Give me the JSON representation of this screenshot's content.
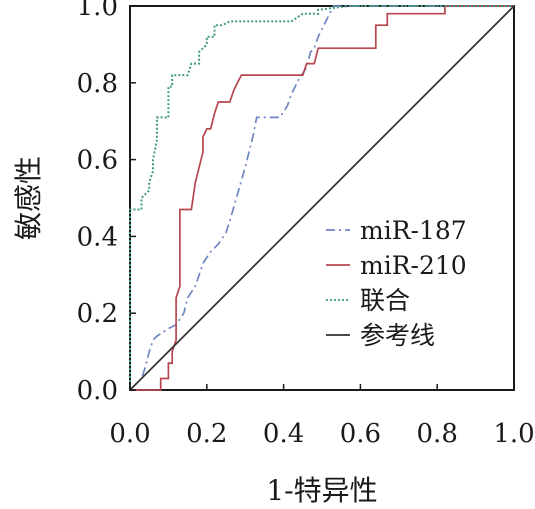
{
  "chart_data": {
    "type": "line",
    "title": "",
    "xlabel": "1-特异性",
    "ylabel": "敏感性",
    "xlim": [
      0.0,
      1.0
    ],
    "ylim": [
      0.0,
      1.0
    ],
    "xticks": [
      "0.0",
      "0.2",
      "0.4",
      "0.6",
      "0.8",
      "1.0"
    ],
    "yticks": [
      "0.0",
      "0.2",
      "0.4",
      "0.6",
      "0.8",
      "1.0"
    ],
    "grid": false,
    "legend_position": "right",
    "series": [
      {
        "name": "miR-187",
        "color": "#6f86c4",
        "style": "dashdot",
        "points": [
          [
            0.0,
            0.0
          ],
          [
            0.03,
            0.03
          ],
          [
            0.04,
            0.06
          ],
          [
            0.05,
            0.1
          ],
          [
            0.06,
            0.13
          ],
          [
            0.07,
            0.14
          ],
          [
            0.1,
            0.16
          ],
          [
            0.12,
            0.17
          ],
          [
            0.14,
            0.2
          ],
          [
            0.15,
            0.24
          ],
          [
            0.17,
            0.27
          ],
          [
            0.19,
            0.33
          ],
          [
            0.21,
            0.36
          ],
          [
            0.23,
            0.38
          ],
          [
            0.25,
            0.41
          ],
          [
            0.26,
            0.44
          ],
          [
            0.28,
            0.51
          ],
          [
            0.3,
            0.58
          ],
          [
            0.32,
            0.66
          ],
          [
            0.33,
            0.71
          ],
          [
            0.39,
            0.71
          ],
          [
            0.41,
            0.74
          ],
          [
            0.42,
            0.77
          ],
          [
            0.44,
            0.81
          ],
          [
            0.46,
            0.84
          ],
          [
            0.47,
            0.88
          ],
          [
            0.48,
            0.89
          ],
          [
            0.49,
            0.92
          ],
          [
            0.51,
            0.96
          ],
          [
            0.53,
            1.0
          ],
          [
            1.0,
            1.0
          ]
        ]
      },
      {
        "name": "miR-210",
        "color": "#b7474f",
        "style": "solid",
        "points": [
          [
            0.0,
            0.0
          ],
          [
            0.08,
            0.0
          ],
          [
            0.08,
            0.03
          ],
          [
            0.1,
            0.03
          ],
          [
            0.1,
            0.07
          ],
          [
            0.11,
            0.07
          ],
          [
            0.11,
            0.1
          ],
          [
            0.12,
            0.13
          ],
          [
            0.12,
            0.24
          ],
          [
            0.13,
            0.27
          ],
          [
            0.13,
            0.47
          ],
          [
            0.16,
            0.47
          ],
          [
            0.17,
            0.54
          ],
          [
            0.18,
            0.58
          ],
          [
            0.19,
            0.62
          ],
          [
            0.19,
            0.66
          ],
          [
            0.2,
            0.68
          ],
          [
            0.21,
            0.68
          ],
          [
            0.22,
            0.72
          ],
          [
            0.23,
            0.75
          ],
          [
            0.26,
            0.75
          ],
          [
            0.27,
            0.78
          ],
          [
            0.28,
            0.8
          ],
          [
            0.29,
            0.82
          ],
          [
            0.45,
            0.82
          ],
          [
            0.46,
            0.85
          ],
          [
            0.48,
            0.85
          ],
          [
            0.49,
            0.89
          ],
          [
            0.64,
            0.89
          ],
          [
            0.64,
            0.95
          ],
          [
            0.67,
            0.95
          ],
          [
            0.67,
            0.98
          ],
          [
            0.82,
            0.98
          ],
          [
            0.82,
            1.0
          ],
          [
            1.0,
            1.0
          ]
        ]
      },
      {
        "name": "联合",
        "color": "#3f9a7e",
        "style": "dotted",
        "points": [
          [
            0.0,
            0.0
          ],
          [
            0.0,
            0.47
          ],
          [
            0.03,
            0.47
          ],
          [
            0.03,
            0.5
          ],
          [
            0.05,
            0.52
          ],
          [
            0.05,
            0.54
          ],
          [
            0.06,
            0.57
          ],
          [
            0.06,
            0.6
          ],
          [
            0.07,
            0.65
          ],
          [
            0.07,
            0.71
          ],
          [
            0.1,
            0.71
          ],
          [
            0.1,
            0.79
          ],
          [
            0.11,
            0.79
          ],
          [
            0.11,
            0.82
          ],
          [
            0.15,
            0.82
          ],
          [
            0.16,
            0.85
          ],
          [
            0.18,
            0.85
          ],
          [
            0.18,
            0.88
          ],
          [
            0.2,
            0.9
          ],
          [
            0.2,
            0.92
          ],
          [
            0.22,
            0.92
          ],
          [
            0.22,
            0.95
          ],
          [
            0.24,
            0.95
          ],
          [
            0.26,
            0.96
          ],
          [
            0.42,
            0.96
          ],
          [
            0.45,
            0.98
          ],
          [
            0.49,
            0.98
          ],
          [
            0.49,
            0.99
          ],
          [
            0.57,
            1.0
          ],
          [
            1.0,
            1.0
          ]
        ]
      },
      {
        "name": "参考线",
        "color": "#333333",
        "style": "solid",
        "points": [
          [
            0.0,
            0.0
          ],
          [
            1.0,
            1.0
          ]
        ]
      }
    ]
  }
}
